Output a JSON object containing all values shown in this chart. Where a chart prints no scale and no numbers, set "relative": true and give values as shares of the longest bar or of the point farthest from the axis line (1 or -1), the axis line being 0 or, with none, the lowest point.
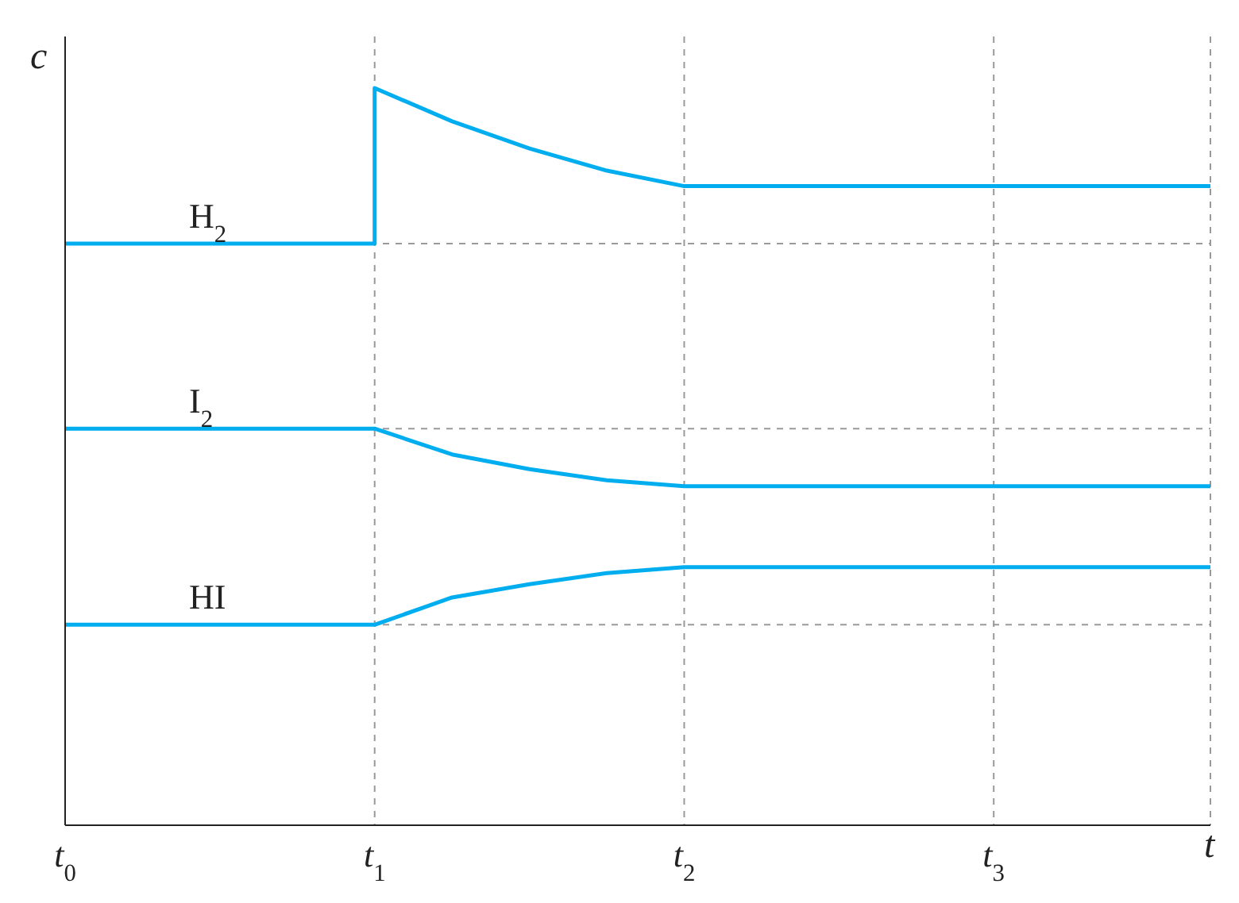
{
  "chart_data": {
    "type": "line",
    "relative": true,
    "xlabel": "t",
    "ylabel": "c",
    "xlim": [
      0,
      3.7
    ],
    "xticks": [
      {
        "value": 0,
        "label": "t$_{0}$"
      },
      {
        "value": 1,
        "label": "t$_{1}$"
      },
      {
        "value": 2,
        "label": "t$_{2}$"
      },
      {
        "value": 3,
        "label": "t$_{3}$"
      }
    ],
    "grid": "x",
    "marker": "none",
    "line_style": "solid",
    "series": [
      {
        "name": "H$_{2}$",
        "color": "#00aeef",
        "x": [
          0,
          1,
          1,
          1.25,
          1.5,
          1.75,
          2,
          3.7
        ],
        "values": [
          0.789,
          0.789,
          1,
          0.955,
          0.918,
          0.888,
          0.867,
          0.867
        ]
      },
      {
        "name": "I$_{2}$",
        "color": "#00aeef",
        "x": [
          0,
          1,
          1.25,
          1.5,
          1.75,
          2,
          3.7
        ],
        "values": [
          0.538,
          0.538,
          0.503,
          0.483,
          0.468,
          0.46,
          0.46
        ]
      },
      {
        "name": "HI",
        "color": "#00aeef",
        "x": [
          0,
          1,
          1.25,
          1.5,
          1.75,
          2,
          3.7
        ],
        "values": [
          0.272,
          0.272,
          0.309,
          0.327,
          0.342,
          0.35,
          0.35
        ]
      }
    ],
    "ref_lines": [
      {
        "axis": "y",
        "value": 0.789,
        "color": "#999999",
        "line_style": "dashed"
      },
      {
        "axis": "y",
        "value": 0.538,
        "color": "#999999",
        "line_style": "dashed"
      },
      {
        "axis": "y",
        "value": 0.272,
        "color": "#999999",
        "line_style": "dashed"
      }
    ]
  }
}
